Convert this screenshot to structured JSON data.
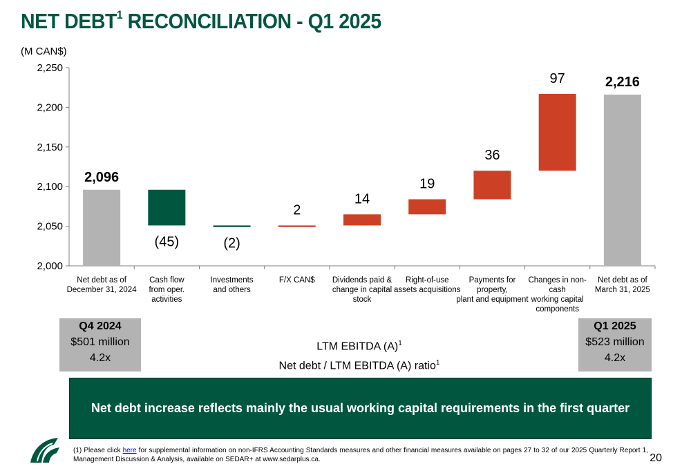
{
  "page": {
    "title": "NET DEBT",
    "title_sup": "1",
    "title_rest": " RECONCILIATION - Q1 2025",
    "units": "(M CAN$)",
    "page_number": "20"
  },
  "colors": {
    "brand_green": "#00563f",
    "decrease": "#00563f",
    "increase": "#cc4125",
    "total": "#b3b3b3",
    "axis": "#7f7f7f"
  },
  "chart_data": {
    "type": "bar",
    "subtype": "waterfall",
    "ylim": [
      2000,
      2250
    ],
    "yticks": [
      2000,
      2050,
      2100,
      2150,
      2200,
      2250
    ],
    "ytick_labels": [
      "2,000",
      "2,050",
      "2,100",
      "2,150",
      "2,200",
      "2,250"
    ],
    "grid": false,
    "bars": [
      {
        "category": [
          "Net debt as of",
          "December 31, 2024"
        ],
        "kind": "total",
        "start": 2000,
        "end": 2096,
        "label": "2,096"
      },
      {
        "category": [
          "Cash flow",
          "from oper.",
          "activities"
        ],
        "kind": "decrease",
        "start": 2096,
        "end": 2051,
        "label": "(45)"
      },
      {
        "category": [
          "Investments",
          "and others"
        ],
        "kind": "decrease",
        "start": 2051,
        "end": 2049,
        "label": "(2)"
      },
      {
        "category": [
          "F/X CAN$"
        ],
        "kind": "increase",
        "start": 2049,
        "end": 2051,
        "label": "2"
      },
      {
        "category": [
          "Dividends paid &",
          "change in capital",
          "stock"
        ],
        "kind": "increase",
        "start": 2051,
        "end": 2065,
        "label": "14"
      },
      {
        "category": [
          "Right-of-use",
          "assets acquisitions"
        ],
        "kind": "increase",
        "start": 2065,
        "end": 2084,
        "label": "19"
      },
      {
        "category": [
          "Payments for",
          "property,",
          "plant and equipment"
        ],
        "kind": "increase",
        "start": 2084,
        "end": 2120,
        "label": "36"
      },
      {
        "category": [
          "Changes in non-",
          "cash",
          "working capital",
          "components"
        ],
        "kind": "increase",
        "start": 2120,
        "end": 2217,
        "label": "97"
      },
      {
        "category": [
          "Net debt as of",
          "March 31, 2025"
        ],
        "kind": "total",
        "start": 2000,
        "end": 2216,
        "label": "2,216"
      }
    ]
  },
  "ebitda": {
    "left": {
      "period": "Q4 2024",
      "ebitda": "$501 million",
      "ratio": "4.2x"
    },
    "right": {
      "period": "Q1 2025",
      "ebitda": "$523 million",
      "ratio": "4.2x"
    },
    "center_line1": "LTM EBITDA (A)",
    "center_line2": "Net debt / LTM EBITDA (A) ratio",
    "sup": "1"
  },
  "banner": "Net debt increase reflects mainly the usual working capital requirements in the first quarter",
  "footnote": {
    "prefix": "(1) Please click ",
    "link": "here",
    "suffix": " for supplemental information on non-IFRS Accounting Standards measures and other financial measures available on pages 27 to 32 of our 2025 Quarterly Report 1, Management Discussion & Analysis, available on SEDAR+ at www.sedarplus.ca."
  },
  "logo_icon": "company-logo-icon"
}
